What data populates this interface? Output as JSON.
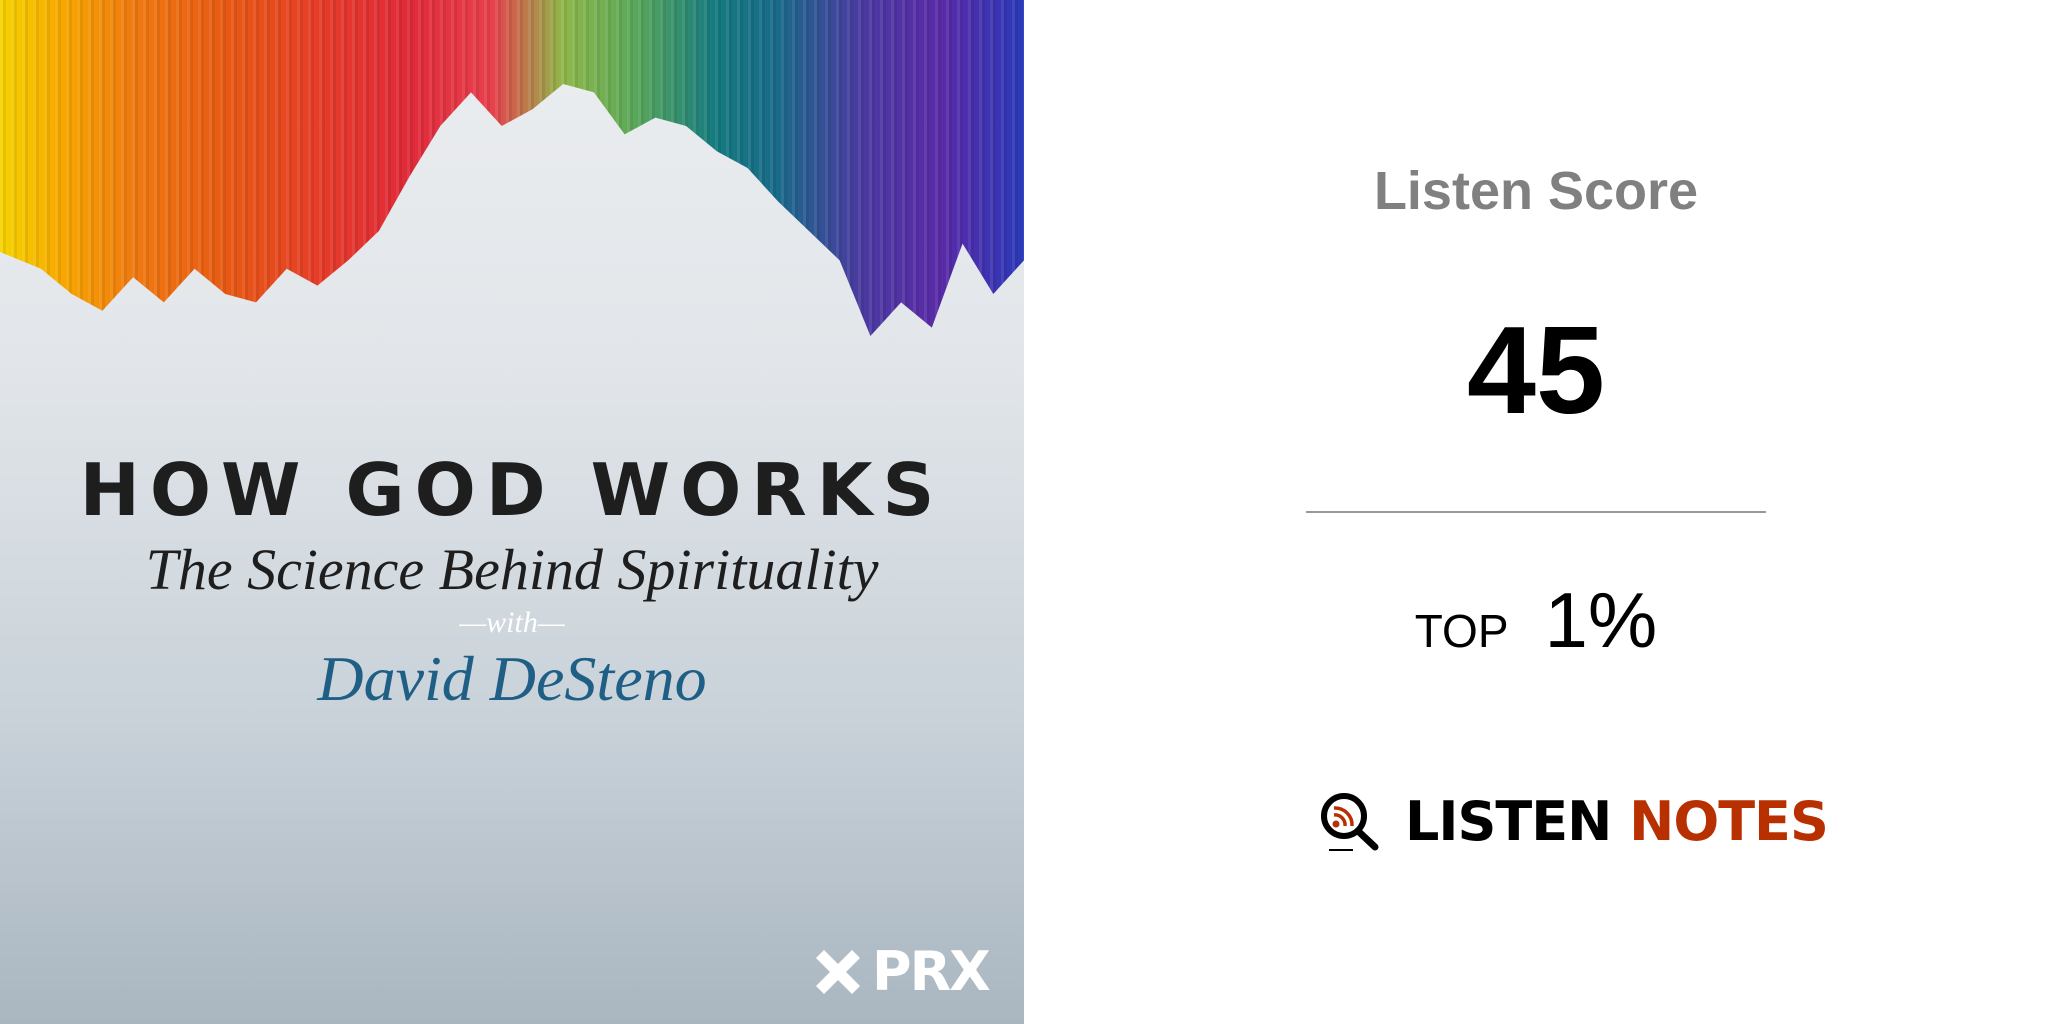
{
  "artwork": {
    "title": "HOW GOD WORKS",
    "subtitle": "The Science Behind Spirituality",
    "with": "—with—",
    "host": "David DeSteno",
    "publisher": "PRX",
    "host_color": "#1f5f85"
  },
  "score_panel": {
    "label": "Listen Score",
    "score": "45",
    "rank_prefix": "TOP",
    "rank_value": "1%"
  },
  "brand": {
    "word1": "LISTEN",
    "word2": "NOTES",
    "accent": "#b83000",
    "icon": "magnifier-rss-icon"
  }
}
